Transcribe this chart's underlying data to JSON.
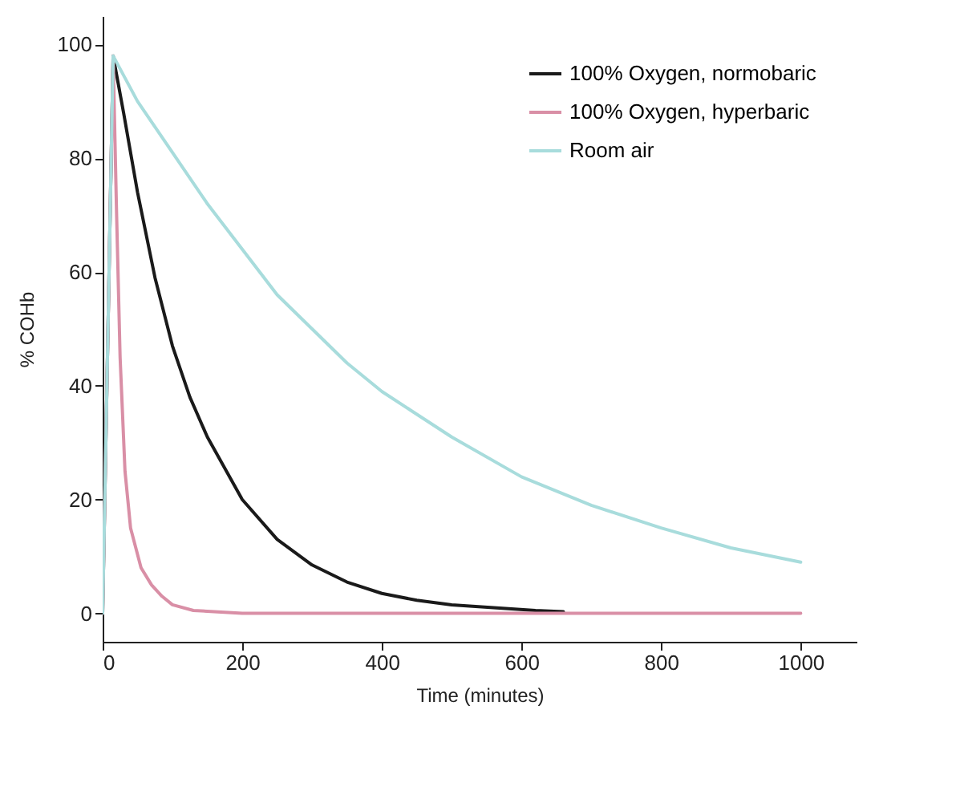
{
  "chart_data": {
    "type": "line",
    "xlabel": "Time (minutes)",
    "ylabel": "% COHb",
    "xlim": [
      0,
      1080
    ],
    "ylim": [
      -5,
      105
    ],
    "xticks": [
      0,
      200,
      400,
      600,
      800,
      1000
    ],
    "yticks": [
      0,
      20,
      40,
      60,
      80,
      100
    ],
    "grid": false,
    "legend": "top right",
    "marker": "none",
    "line_style": "solid",
    "series": [
      {
        "name": "100% Oxygen, normobaric",
        "color": "#1a1a1a",
        "x": [
          0,
          15,
          30,
          50,
          75,
          100,
          125,
          150,
          200,
          250,
          300,
          350,
          400,
          450,
          500,
          560,
          620,
          660
        ],
        "values": [
          0,
          98,
          88,
          74,
          59,
          47,
          38,
          31,
          20,
          13,
          8.5,
          5.5,
          3.5,
          2.3,
          1.5,
          1,
          0.5,
          0.3
        ]
      },
      {
        "name": "100% Oxygen, hyperbaric",
        "color": "#d98fa6",
        "x": [
          0,
          15,
          20,
          25,
          32,
          40,
          55,
          70,
          85,
          100,
          130,
          200,
          400,
          700,
          1000
        ],
        "values": [
          0,
          98,
          70,
          45,
          25,
          15,
          8,
          5,
          3,
          1.5,
          0.5,
          0,
          0,
          0,
          0
        ]
      },
      {
        "name": "Room air",
        "color": "#a8dcdc",
        "x": [
          0,
          15,
          50,
          100,
          150,
          200,
          250,
          300,
          350,
          400,
          500,
          600,
          700,
          800,
          900,
          1000
        ],
        "values": [
          0,
          98,
          90,
          81,
          72,
          64,
          56,
          50,
          44,
          39,
          31,
          24,
          19,
          15,
          11.5,
          9
        ]
      }
    ]
  }
}
